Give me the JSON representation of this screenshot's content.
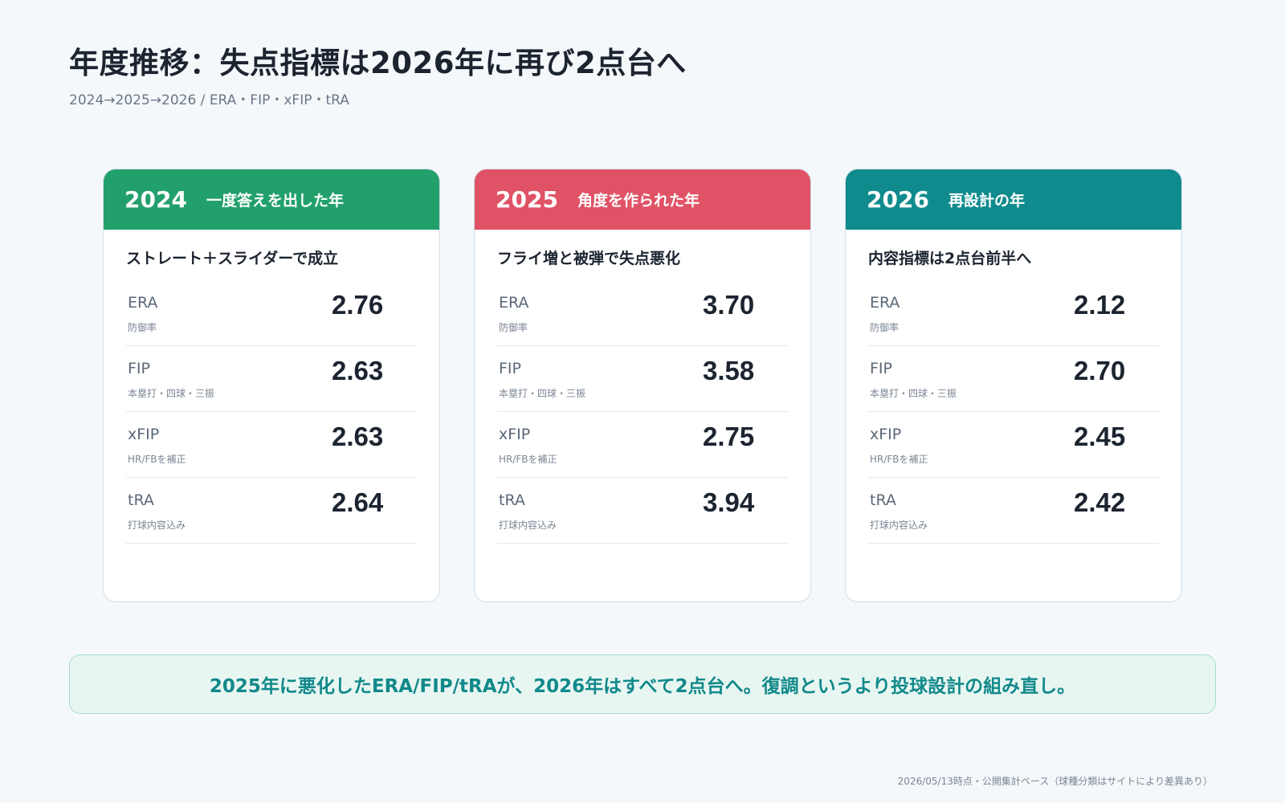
{
  "title": "年度推移：失点指標は2026年に再び2点台へ",
  "subtitle": "2024→2025→2026 / ERA・FIP・xFIP・tRA",
  "colors": {
    "green": "#22a06b",
    "red": "#e05366",
    "teal": "#0f8b8d"
  },
  "cards": [
    {
      "year": "2024",
      "header_label": "一度答えを出した年",
      "color": "#22a06b",
      "subtitle": "ストレート＋スライダーで成立",
      "metrics": [
        {
          "name": "ERA",
          "desc": "防御率",
          "value": "2.76"
        },
        {
          "name": "FIP",
          "desc": "本塁打・四球・三振",
          "value": "2.63"
        },
        {
          "name": "xFIP",
          "desc": "HR/FBを補正",
          "value": "2.63"
        },
        {
          "name": "tRA",
          "desc": "打球内容込み",
          "value": "2.64"
        }
      ]
    },
    {
      "year": "2025",
      "header_label": "角度を作られた年",
      "color": "#e05366",
      "subtitle": "フライ増と被弾で失点悪化",
      "metrics": [
        {
          "name": "ERA",
          "desc": "防御率",
          "value": "3.70"
        },
        {
          "name": "FIP",
          "desc": "本塁打・四球・三振",
          "value": "3.58"
        },
        {
          "name": "xFIP",
          "desc": "HR/FBを補正",
          "value": "2.75"
        },
        {
          "name": "tRA",
          "desc": "打球内容込み",
          "value": "3.94"
        }
      ]
    },
    {
      "year": "2026",
      "header_label": "再設計の年",
      "color": "#0f8b8d",
      "subtitle": "内容指標は2点台前半へ",
      "metrics": [
        {
          "name": "ERA",
          "desc": "防御率",
          "value": "2.12"
        },
        {
          "name": "FIP",
          "desc": "本塁打・四球・三振",
          "value": "2.70"
        },
        {
          "name": "xFIP",
          "desc": "HR/FBを補正",
          "value": "2.45"
        },
        {
          "name": "tRA",
          "desc": "打球内容込み",
          "value": "2.42"
        }
      ]
    }
  ],
  "callout": "2025年に悪化したERA/FIP/tRAが、2026年はすべて2点台へ。復調というより投球設計の組み直し。",
  "footnote": "2026/05/13時点・公開集計ベース（球種分類はサイトにより差異あり）"
}
